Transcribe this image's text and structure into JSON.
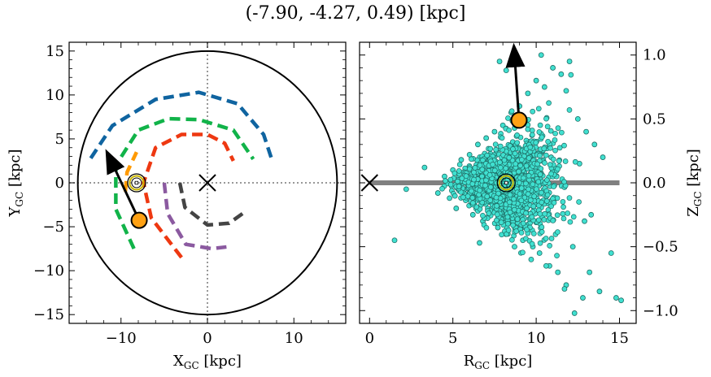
{
  "title": "(-7.90, -4.27, 0.49) [kpc]",
  "chart_data": [
    {
      "type": "scatter",
      "panel": "left",
      "xlabel_main": "X",
      "xlabel_sub": "GC",
      "xlabel_unit": " [kpc]",
      "ylabel_main": "Y",
      "ylabel_sub": "GC",
      "ylabel_unit": " [kpc]",
      "xlim": [
        -16,
        16
      ],
      "ylim": [
        -16,
        16
      ],
      "xticks": [
        -10,
        0,
        10
      ],
      "xticklabels": [
        "−10",
        "0",
        "10"
      ],
      "yticks": [
        -15,
        -10,
        -5,
        0,
        5,
        10,
        15
      ],
      "yticklabels": [
        "−15",
        "−10",
        "−5",
        "0",
        "5",
        "10",
        "15"
      ],
      "grid": false,
      "boundary_circle_radius": 15,
      "galactic_center": [
        0,
        0
      ],
      "sun_position": [
        -8.2,
        0.0
      ],
      "star_position": [
        -7.9,
        -4.27
      ],
      "proper_motion_arrow": {
        "from": [
          -7.9,
          -4.27
        ],
        "to": [
          -11.2,
          2.6
        ]
      },
      "spiral_arms": [
        {
          "color": "#444444",
          "points": [
            [
              -3.2,
              0
            ],
            [
              -2.6,
              -2.8
            ],
            [
              0,
              -4.8
            ],
            [
              2.5,
              -4.6
            ],
            [
              4.5,
              -3.2
            ]
          ]
        },
        {
          "color": "#8b5aa0",
          "points": [
            [
              -5,
              0
            ],
            [
              -4.6,
              -3.5
            ],
            [
              -2.5,
              -7
            ],
            [
              0.5,
              -7.5
            ],
            [
              2.2,
              -7.3
            ]
          ]
        },
        {
          "color": "#ee3811",
          "points": [
            [
              -3,
              -8.5
            ],
            [
              -6.5,
              -4
            ],
            [
              -7.4,
              0
            ],
            [
              -6,
              4
            ],
            [
              -3,
              5.5
            ],
            [
              0,
              5.5
            ],
            [
              2,
              4.5
            ],
            [
              3,
              2.5
            ]
          ]
        },
        {
          "color": "#11b349",
          "points": [
            [
              -8.5,
              -7.5
            ],
            [
              -10.6,
              -3
            ],
            [
              -10.6,
              2
            ],
            [
              -8,
              6
            ],
            [
              -4.5,
              7.3
            ],
            [
              -1,
              7.2
            ],
            [
              3,
              6
            ],
            [
              5.3,
              2.7
            ]
          ]
        },
        {
          "color": "#ff9a00",
          "points": [
            [
              -9.5,
              -1
            ],
            [
              -9.3,
              1.2
            ],
            [
              -8.2,
              3.5
            ]
          ]
        },
        {
          "color": "#0f64a0",
          "points": [
            [
              -13.5,
              2.8
            ],
            [
              -11,
              6.5
            ],
            [
              -6,
              9.5
            ],
            [
              -1,
              10.3
            ],
            [
              3.5,
              9
            ],
            [
              6.5,
              5.5
            ],
            [
              7.5,
              2.5
            ]
          ]
        }
      ]
    },
    {
      "type": "scatter",
      "panel": "right",
      "xlabel_main": "R",
      "xlabel_sub": "GC",
      "xlabel_unit": " [kpc]",
      "ylabel_main": "Z",
      "ylabel_sub": "GC",
      "ylabel_unit": " [kpc]",
      "xlim": [
        -0.6,
        16
      ],
      "ylim": [
        -1.1,
        1.1
      ],
      "xticks": [
        0,
        5,
        10,
        15
      ],
      "xticklabels": [
        "0",
        "5",
        "10",
        "15"
      ],
      "yticks": [
        -1.0,
        -0.5,
        0.0,
        0.5,
        1.0
      ],
      "yticklabels": [
        "−1.0",
        "−0.5",
        "0.0",
        "0.5",
        "1.0"
      ],
      "grid": false,
      "disk_line": {
        "x": [
          0,
          15
        ],
        "z": 0
      },
      "galactic_center": [
        0,
        0
      ],
      "sun_position": [
        8.2,
        0.0
      ],
      "star_position": [
        8.97,
        0.49
      ],
      "proper_motion_arrow": {
        "from": [
          8.97,
          0.49
        ],
        "to": [
          8.7,
          1.0
        ]
      },
      "scatter_color": "#40e0d0",
      "scatter_edge": "#1f6e66",
      "points": [
        [
          1.5,
          -0.45
        ],
        [
          2.2,
          -0.05
        ],
        [
          3.3,
          0.12
        ],
        [
          4.1,
          -0.08
        ],
        [
          4.5,
          0.05
        ],
        [
          4.8,
          -0.12
        ],
        [
          5.0,
          0.1
        ],
        [
          5.2,
          -0.2
        ],
        [
          5.5,
          0.18
        ],
        [
          5.7,
          -0.05
        ],
        [
          6.0,
          0.22
        ],
        [
          6.2,
          -0.25
        ],
        [
          6.5,
          0.3
        ],
        [
          6.8,
          -0.3
        ],
        [
          7.0,
          0.35
        ],
        [
          7.2,
          -0.15
        ],
        [
          7.5,
          0.4
        ],
        [
          7.7,
          -0.35
        ],
        [
          8.0,
          0.45
        ],
        [
          8.3,
          -0.4
        ],
        [
          8.5,
          0.55
        ],
        [
          8.7,
          -0.5
        ],
        [
          9.0,
          0.6
        ],
        [
          9.2,
          -0.45
        ],
        [
          9.5,
          0.7
        ],
        [
          9.7,
          -0.6
        ],
        [
          10.0,
          0.8
        ],
        [
          10.2,
          -0.55
        ],
        [
          10.5,
          0.75
        ],
        [
          10.8,
          -0.65
        ],
        [
          11.0,
          0.9
        ],
        [
          11.3,
          -0.7
        ],
        [
          11.5,
          0.85
        ],
        [
          11.8,
          -0.8
        ],
        [
          12.0,
          0.95
        ],
        [
          12.2,
          -0.5
        ],
        [
          12.5,
          0.5
        ],
        [
          12.8,
          -0.9
        ],
        [
          13.0,
          0.4
        ],
        [
          13.2,
          -0.7
        ],
        [
          13.5,
          0.3
        ],
        [
          13.8,
          -0.85
        ],
        [
          14.0,
          0.2
        ],
        [
          14.5,
          -0.55
        ],
        [
          14.8,
          -0.9
        ],
        [
          15.1,
          -0.92
        ],
        [
          7.8,
          0.95
        ],
        [
          8.2,
          0.88
        ],
        [
          10.3,
          1.0
        ],
        [
          11.8,
          0.72
        ],
        [
          12.3,
          -1.02
        ],
        [
          11.7,
          -0.83
        ],
        [
          10.6,
          -0.65
        ],
        [
          9.8,
          -0.5
        ],
        [
          6.6,
          -0.47
        ],
        [
          6.9,
          0.05
        ],
        [
          7.3,
          0.1
        ],
        [
          9.3,
          0.15
        ],
        [
          10.9,
          0.2
        ],
        [
          12.6,
          0.15
        ],
        [
          13.3,
          -0.25
        ],
        [
          5.9,
          0.0
        ],
        [
          9.9,
          -0.08
        ],
        [
          11.2,
          -0.12
        ],
        [
          12.9,
          -0.3
        ]
      ]
    }
  ]
}
